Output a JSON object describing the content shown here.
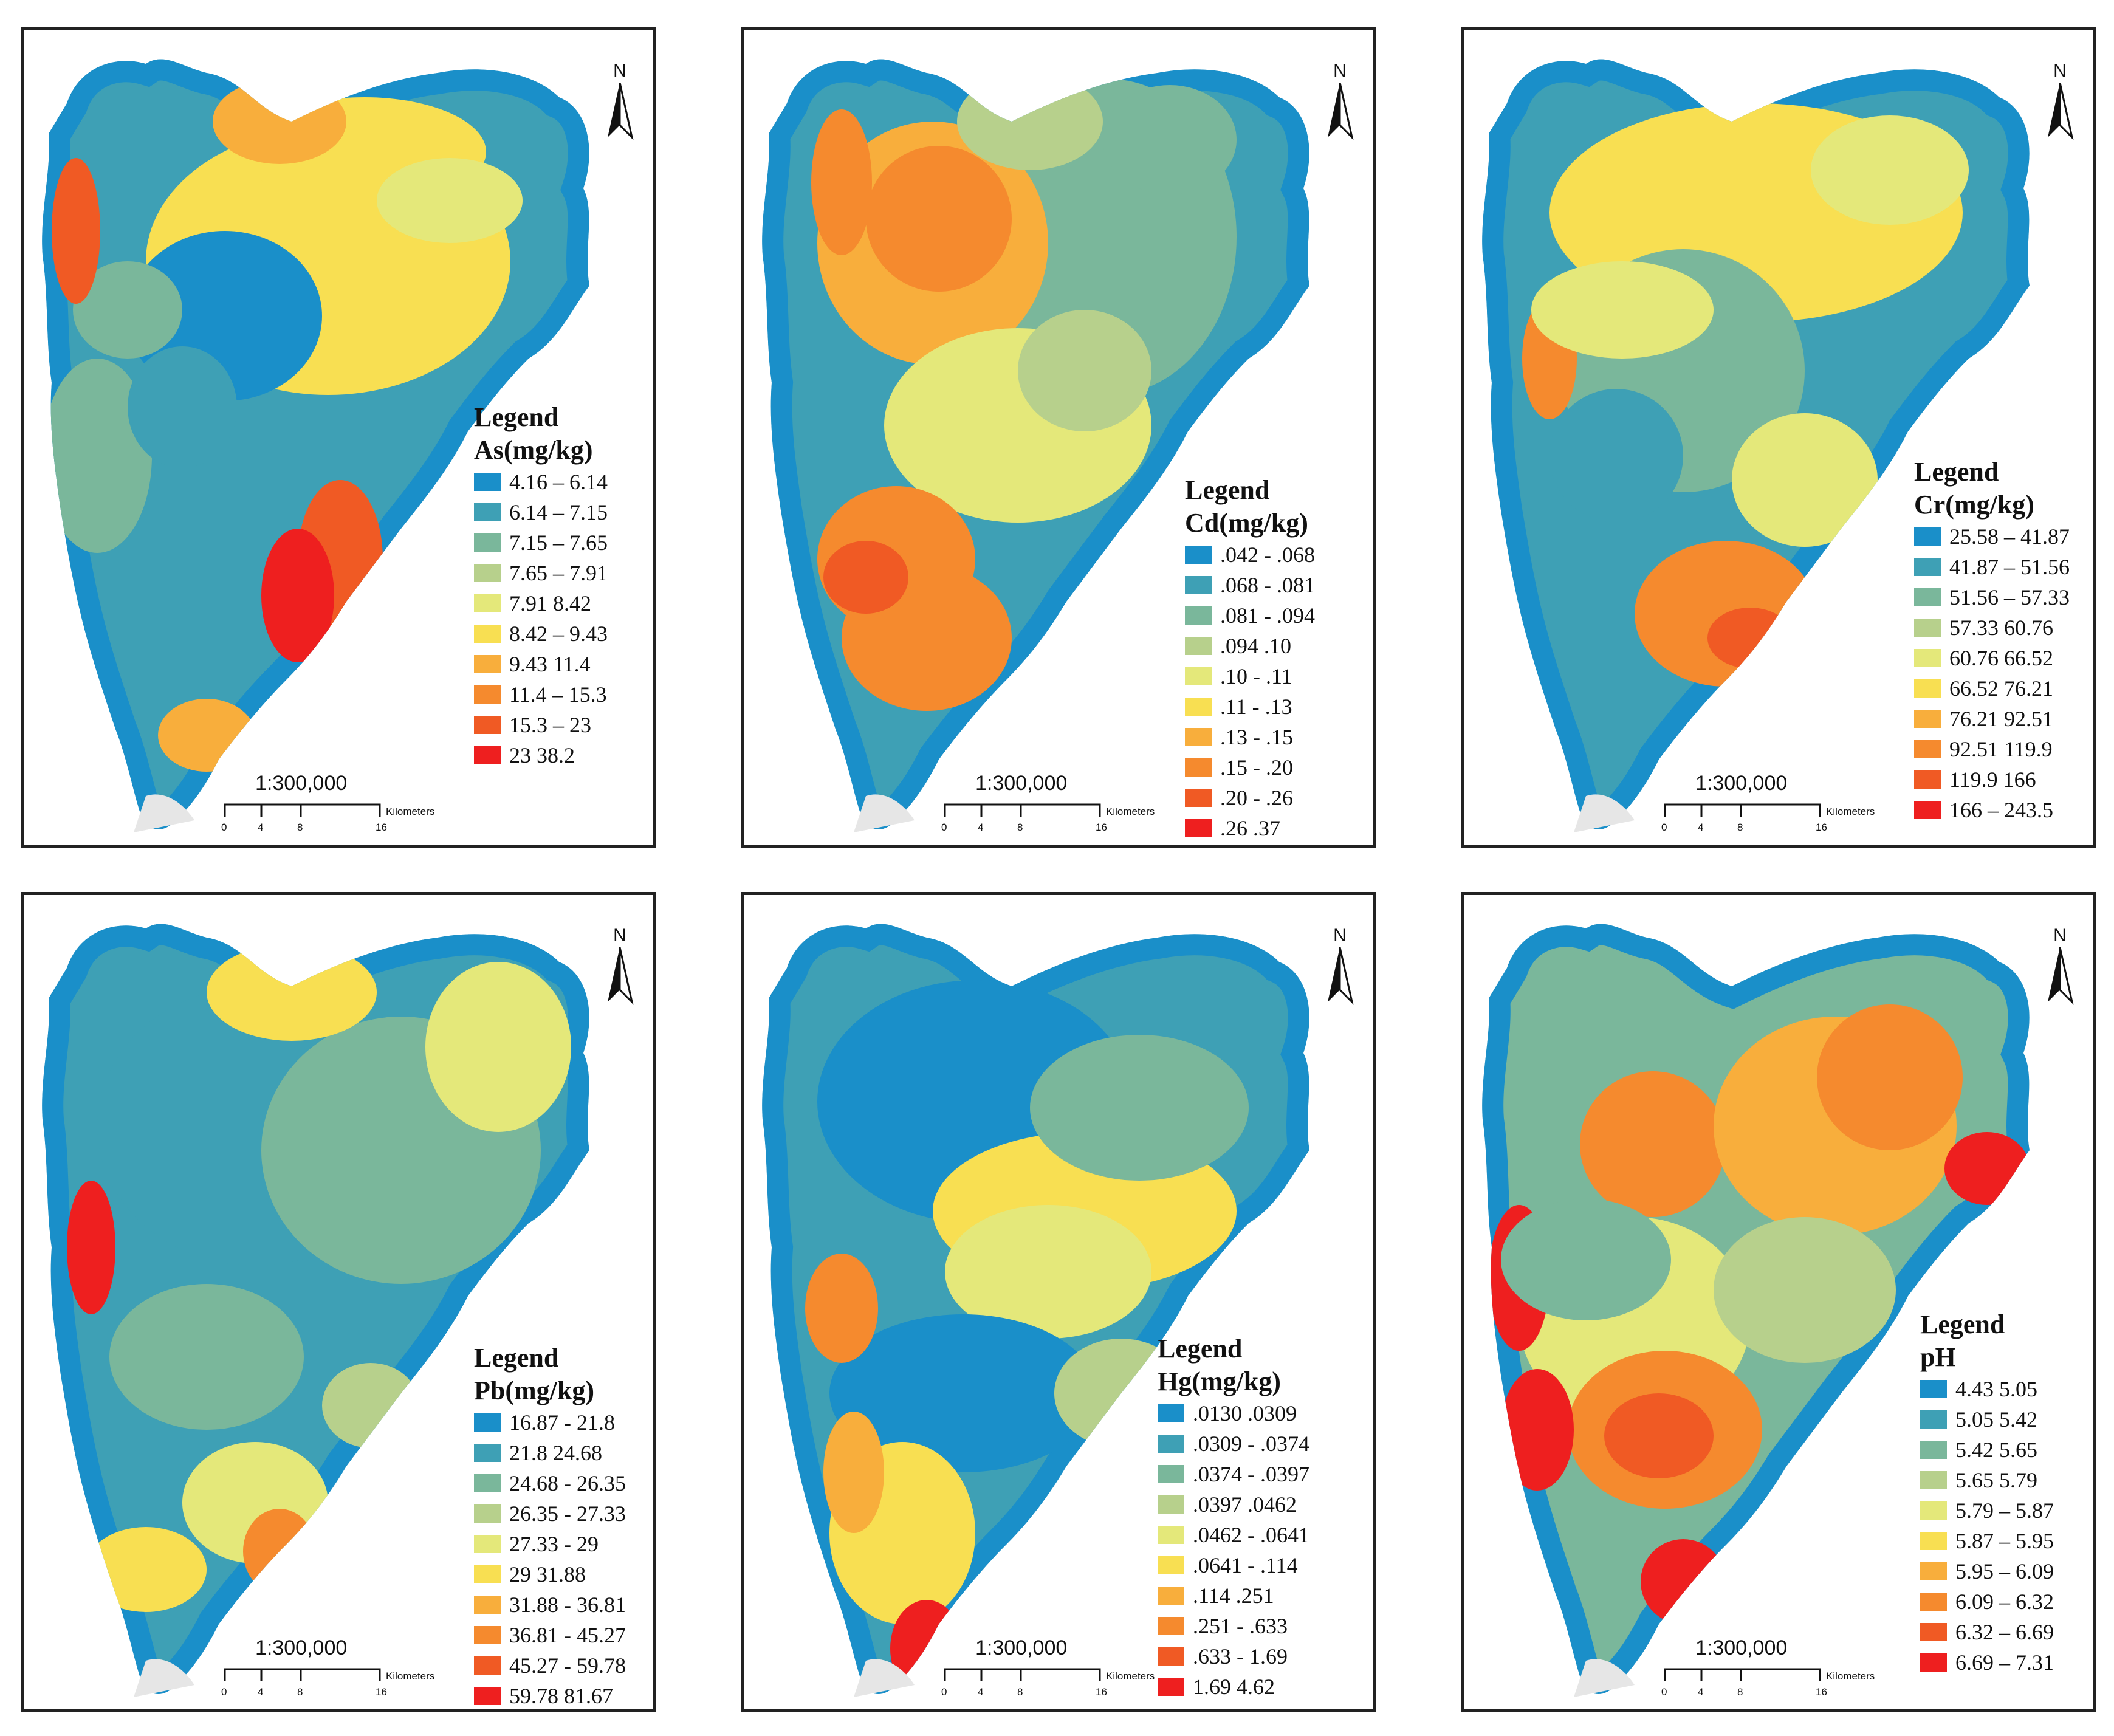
{
  "scale": "1:300,000",
  "scale_unit": "Kilometers",
  "scale_ticks": [
    "0",
    "4",
    "8",
    "16"
  ],
  "north": "N",
  "legend_heading": "Legend",
  "class_colors": [
    "#1a8fc9",
    "#3ea0b5",
    "#7ab79b",
    "#b7d08c",
    "#e4e87a",
    "#f8df52",
    "#f8ae3c",
    "#f58a2e",
    "#f05a24",
    "#ee1f1f"
  ],
  "panels": [
    {
      "param": "As(mg/kg)",
      "classes": [
        "4.16 – 6.14",
        "6.14 – 7.15",
        "7.15 – 7.65",
        "7.65 – 7.91",
        "7.91 8.42",
        "8.42 – 9.43",
        "9.43 11.4",
        "11.4 – 15.3",
        "15.3 – 23",
        "23 38.2"
      ]
    },
    {
      "param": "Cd(mg/kg)",
      "classes": [
        ".042 - .068",
        ".068 - .081",
        ".081 - .094",
        ".094 .10",
        ".10 - .11",
        ".11 - .13",
        ".13 - .15",
        ".15 - .20",
        ".20 - .26",
        ".26 .37"
      ]
    },
    {
      "param": "Cr(mg/kg)",
      "classes": [
        "25.58 – 41.87",
        "41.87 – 51.56",
        "51.56 – 57.33",
        "57.33 60.76",
        "60.76 66.52",
        "66.52 76.21",
        "76.21 92.51",
        "92.51 119.9",
        "119.9 166",
        "166 – 243.5"
      ]
    },
    {
      "param": "Pb(mg/kg)",
      "classes": [
        "16.87 - 21.8",
        "21.8 24.68",
        "24.68 - 26.35",
        "26.35 - 27.33",
        "27.33 - 29",
        "29 31.88",
        "31.88 - 36.81",
        "36.81 - 45.27",
        "45.27 - 59.78",
        "59.78 81.67"
      ]
    },
    {
      "param": "Hg(mg/kg)",
      "classes": [
        ".0130 .0309",
        ".0309 - .0374",
        ".0374 - .0397",
        ".0397 .0462",
        ".0462 - .0641",
        ".0641 - .114",
        ".114 .251",
        ".251 - .633",
        ".633 - 1.69",
        "1.69 4.62"
      ]
    },
    {
      "param": "pH",
      "classes": [
        "4.43 5.05",
        "5.05 5.42",
        "5.42 5.65",
        "5.65 5.79",
        "5.79 – 5.87",
        "5.87 – 5.95",
        "5.95 – 6.09",
        "6.09 – 6.32",
        "6.32 – 6.69",
        "6.69 – 7.31"
      ]
    }
  ]
}
